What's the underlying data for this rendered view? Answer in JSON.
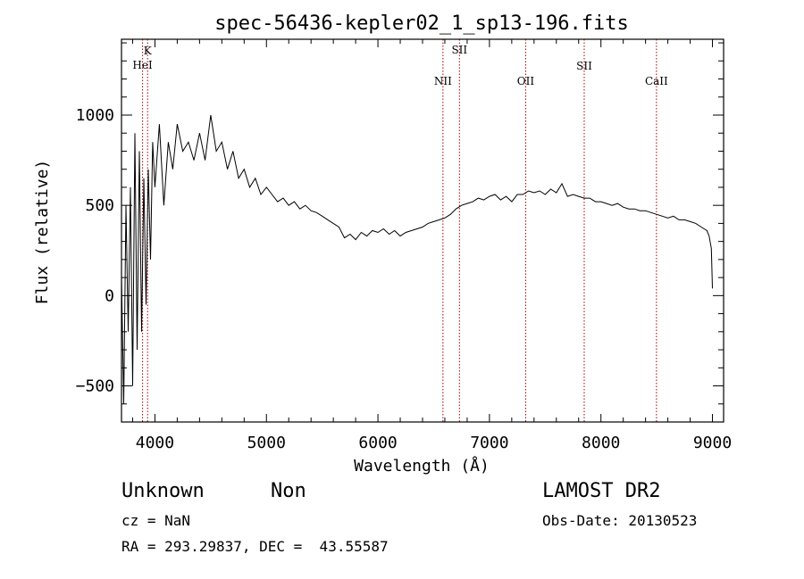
{
  "chart_data": {
    "type": "line",
    "title": "spec-56436-kepler02_1_sp13-196.fits",
    "xlabel": "Wavelength (Å)",
    "ylabel": "Flux (relative)",
    "xlim": [
      3700,
      9100
    ],
    "ylim": [
      -700,
      1420
    ],
    "x_ticks": [
      4000,
      5000,
      6000,
      7000,
      8000,
      9000
    ],
    "y_ticks": [
      -500,
      0,
      500,
      1000
    ],
    "series": [
      {
        "x": [
          3700,
          3720,
          3740,
          3760,
          3780,
          3800,
          3820,
          3840,
          3860,
          3880,
          3900,
          3920,
          3940,
          3960,
          3980,
          4000,
          4040,
          4080,
          4120,
          4160,
          4200,
          4250,
          4300,
          4350,
          4400,
          4450,
          4500,
          4550,
          4600,
          4650,
          4700,
          4750,
          4800,
          4850,
          4900,
          4950,
          5000,
          5050,
          5100,
          5150,
          5200,
          5250,
          5300,
          5350,
          5400,
          5450,
          5500,
          5550,
          5600,
          5650,
          5700,
          5750,
          5800,
          5850,
          5900,
          5950,
          6000,
          6050,
          6100,
          6150,
          6200,
          6250,
          6300,
          6350,
          6400,
          6450,
          6500,
          6550,
          6600,
          6650,
          6700,
          6750,
          6800,
          6850,
          6900,
          6950,
          7000,
          7050,
          7100,
          7150,
          7200,
          7250,
          7300,
          7350,
          7400,
          7450,
          7500,
          7550,
          7600,
          7650,
          7700,
          7750,
          7800,
          7850,
          7900,
          7950,
          8000,
          8050,
          8100,
          8150,
          8200,
          8250,
          8300,
          8350,
          8400,
          8450,
          8500,
          8550,
          8600,
          8650,
          8700,
          8750,
          8800,
          8850,
          8900,
          8950,
          8970,
          8990,
          9000
        ],
        "y": [
          100,
          -600,
          500,
          -200,
          600,
          -500,
          900,
          -300,
          800,
          -200,
          650,
          -50,
          700,
          200,
          850,
          600,
          950,
          500,
          850,
          700,
          950,
          800,
          850,
          750,
          900,
          750,
          1000,
          800,
          850,
          700,
          800,
          650,
          700,
          600,
          650,
          560,
          600,
          560,
          520,
          540,
          500,
          520,
          480,
          500,
          470,
          460,
          440,
          420,
          400,
          380,
          320,
          340,
          310,
          350,
          330,
          360,
          350,
          370,
          340,
          360,
          330,
          350,
          360,
          370,
          380,
          400,
          410,
          420,
          430,
          450,
          480,
          500,
          510,
          520,
          540,
          530,
          550,
          560,
          530,
          550,
          520,
          560,
          560,
          580,
          570,
          580,
          560,
          590,
          570,
          620,
          550,
          560,
          550,
          540,
          540,
          520,
          520,
          510,
          500,
          510,
          490,
          480,
          480,
          470,
          470,
          460,
          450,
          440,
          430,
          440,
          420,
          420,
          410,
          400,
          380,
          360,
          330,
          260,
          40
        ]
      }
    ],
    "spectral_lines": [
      {
        "name": "K",
        "wavelength": 3934
      },
      {
        "name": "HeI",
        "wavelength": 3889
      },
      {
        "name": "NII",
        "wavelength": 6583
      },
      {
        "name": "SII",
        "wavelength": 6731
      },
      {
        "name": "OII",
        "wavelength": 7325
      },
      {
        "name": "SII",
        "wavelength": 7850
      },
      {
        "name": "CaII",
        "wavelength": 8498
      }
    ],
    "line_color": "#000000",
    "marker_color": "#aa0000",
    "grid": false
  },
  "info": {
    "class": "Unknown",
    "subclass": "Non",
    "survey": "LAMOST DR2",
    "cz": "cz = NaN",
    "obs_date": "Obs-Date: 20130523",
    "coords": "RA = 293.29837, DEC =  43.55587"
  }
}
